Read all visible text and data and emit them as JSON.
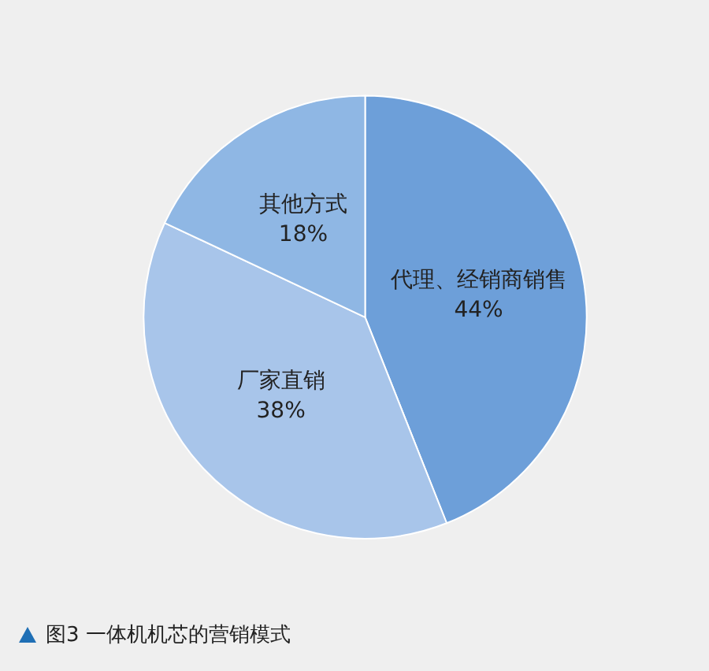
{
  "chart_data": {
    "type": "pie",
    "categories": [
      "代理、经销商销售",
      "厂家直销",
      "其他方式"
    ],
    "values": [
      44,
      38,
      18
    ],
    "colors": [
      "#6d9fd9",
      "#a8c5ea",
      "#8fb7e4"
    ],
    "value_labels": [
      "44%",
      "38%",
      "18%"
    ],
    "annotations": [
      "图3 一体机机芯的营销模式"
    ]
  }
}
